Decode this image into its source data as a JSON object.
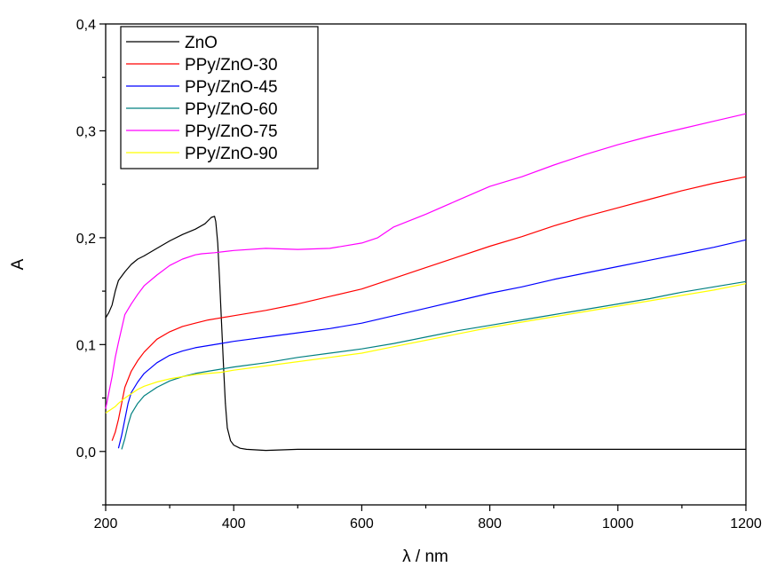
{
  "chart_data": {
    "type": "line",
    "title": "",
    "xlabel": "λ / nm",
    "ylabel": "A",
    "xlim": [
      200,
      1200
    ],
    "ylim": [
      -0.05,
      0.4
    ],
    "x_ticks": [
      200,
      400,
      600,
      800,
      1000,
      1200
    ],
    "x_tick_labels": [
      "200",
      "400",
      "600",
      "800",
      "1000",
      "1200"
    ],
    "y_ticks": [
      0.0,
      0.1,
      0.2,
      0.3,
      0.4
    ],
    "y_tick_labels": [
      "0,0",
      "0,1",
      "0,2",
      "0,3",
      "0,4"
    ],
    "grid": false,
    "legend_position": "top-left",
    "series": [
      {
        "name": "ZnO",
        "color": "#000000",
        "x": [
          200,
          205,
          210,
          215,
          220,
          230,
          240,
          250,
          260,
          280,
          300,
          320,
          340,
          355,
          365,
          370,
          372,
          375,
          378,
          381,
          384,
          387,
          390,
          395,
          400,
          410,
          420,
          450,
          500,
          600,
          700,
          800,
          900,
          1000,
          1100,
          1200
        ],
        "y": [
          0.125,
          0.13,
          0.137,
          0.15,
          0.16,
          0.168,
          0.175,
          0.18,
          0.183,
          0.19,
          0.197,
          0.203,
          0.208,
          0.213,
          0.219,
          0.22,
          0.215,
          0.195,
          0.16,
          0.12,
          0.08,
          0.045,
          0.022,
          0.01,
          0.006,
          0.003,
          0.002,
          0.001,
          0.002,
          0.002,
          0.002,
          0.002,
          0.002,
          0.002,
          0.002,
          0.002
        ]
      },
      {
        "name": "PPy/ZnO-30",
        "color": "#ff0000",
        "x": [
          210,
          215,
          220,
          225,
          230,
          240,
          250,
          260,
          280,
          300,
          320,
          340,
          360,
          380,
          400,
          450,
          500,
          550,
          600,
          650,
          700,
          750,
          800,
          850,
          900,
          950,
          1000,
          1050,
          1100,
          1150,
          1200
        ],
        "y": [
          0.01,
          0.018,
          0.03,
          0.045,
          0.06,
          0.075,
          0.085,
          0.093,
          0.105,
          0.112,
          0.117,
          0.12,
          0.123,
          0.125,
          0.127,
          0.132,
          0.138,
          0.145,
          0.152,
          0.162,
          0.172,
          0.182,
          0.192,
          0.201,
          0.211,
          0.22,
          0.228,
          0.236,
          0.244,
          0.251,
          0.257
        ]
      },
      {
        "name": "PPy/ZnO-45",
        "color": "#0000ff",
        "x": [
          220,
          225,
          230,
          235,
          240,
          250,
          260,
          280,
          300,
          320,
          340,
          360,
          380,
          400,
          450,
          500,
          550,
          600,
          650,
          700,
          750,
          800,
          850,
          900,
          950,
          1000,
          1050,
          1100,
          1150,
          1200
        ],
        "y": [
          0.003,
          0.015,
          0.03,
          0.045,
          0.055,
          0.065,
          0.073,
          0.083,
          0.09,
          0.094,
          0.097,
          0.099,
          0.101,
          0.103,
          0.107,
          0.111,
          0.115,
          0.12,
          0.127,
          0.134,
          0.141,
          0.148,
          0.154,
          0.161,
          0.167,
          0.173,
          0.179,
          0.185,
          0.191,
          0.198
        ]
      },
      {
        "name": "PPy/ZnO-60",
        "color": "#008080",
        "x": [
          225,
          230,
          235,
          240,
          250,
          260,
          280,
          300,
          320,
          340,
          360,
          380,
          400,
          450,
          500,
          550,
          600,
          650,
          700,
          750,
          800,
          850,
          900,
          950,
          1000,
          1050,
          1100,
          1150,
          1200
        ],
        "y": [
          0.002,
          0.012,
          0.025,
          0.035,
          0.045,
          0.052,
          0.06,
          0.066,
          0.07,
          0.073,
          0.075,
          0.077,
          0.079,
          0.083,
          0.088,
          0.092,
          0.096,
          0.101,
          0.107,
          0.113,
          0.118,
          0.123,
          0.128,
          0.133,
          0.138,
          0.143,
          0.149,
          0.154,
          0.159
        ]
      },
      {
        "name": "PPy/ZnO-75",
        "color": "#ff00ff",
        "x": [
          200,
          205,
          210,
          215,
          220,
          225,
          230,
          240,
          250,
          260,
          280,
          300,
          320,
          340,
          350,
          370,
          400,
          450,
          500,
          550,
          600,
          625,
          650,
          700,
          750,
          800,
          850,
          900,
          950,
          1000,
          1050,
          1100,
          1150,
          1200
        ],
        "y": [
          0.04,
          0.055,
          0.07,
          0.088,
          0.102,
          0.115,
          0.128,
          0.138,
          0.147,
          0.155,
          0.165,
          0.174,
          0.18,
          0.184,
          0.185,
          0.186,
          0.188,
          0.19,
          0.189,
          0.19,
          0.195,
          0.2,
          0.21,
          0.222,
          0.235,
          0.248,
          0.257,
          0.268,
          0.278,
          0.287,
          0.295,
          0.302,
          0.309,
          0.316
        ]
      },
      {
        "name": "PPy/ZnO-90",
        "color": "#ffff00",
        "x": [
          200,
          205,
          210,
          215,
          220,
          230,
          240,
          250,
          260,
          280,
          300,
          320,
          340,
          360,
          380,
          400,
          450,
          500,
          550,
          600,
          650,
          700,
          750,
          800,
          850,
          900,
          950,
          1000,
          1050,
          1100,
          1150,
          1200
        ],
        "y": [
          0.036,
          0.038,
          0.04,
          0.042,
          0.045,
          0.05,
          0.054,
          0.058,
          0.061,
          0.065,
          0.068,
          0.07,
          0.072,
          0.073,
          0.074,
          0.076,
          0.08,
          0.084,
          0.088,
          0.092,
          0.098,
          0.104,
          0.11,
          0.116,
          0.121,
          0.126,
          0.131,
          0.136,
          0.141,
          0.146,
          0.151,
          0.157
        ]
      }
    ]
  }
}
